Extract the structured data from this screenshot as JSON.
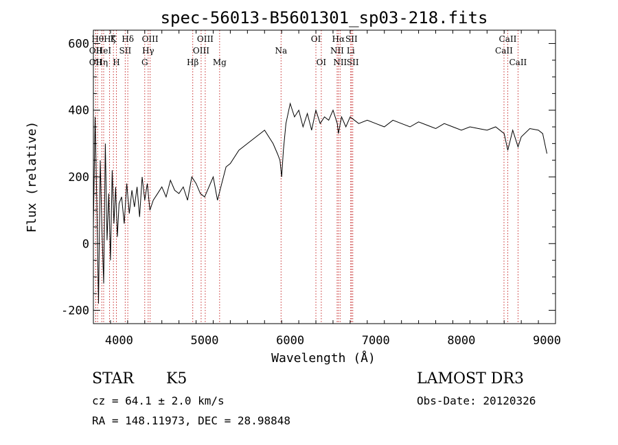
{
  "chart_data": {
    "type": "line",
    "title": "spec-56013-B5601301_sp03-218.fits",
    "xlabel": "Wavelength (Å)",
    "ylabel": "Flux (relative)",
    "xlim": [
      3700,
      9100
    ],
    "ylim": [
      -240,
      640
    ],
    "xticks": [
      4000,
      5000,
      6000,
      7000,
      8000,
      9000
    ],
    "yticks": [
      -200,
      0,
      200,
      400,
      600
    ],
    "grid": false,
    "series": [
      {
        "name": "flux",
        "x": [
          3700,
          3720,
          3740,
          3760,
          3780,
          3800,
          3820,
          3840,
          3860,
          3880,
          3900,
          3920,
          3940,
          3960,
          3980,
          4000,
          4030,
          4060,
          4090,
          4120,
          4150,
          4180,
          4210,
          4240,
          4270,
          4300,
          4330,
          4360,
          4400,
          4450,
          4500,
          4550,
          4600,
          4650,
          4700,
          4750,
          4800,
          4850,
          4900,
          4950,
          5000,
          5050,
          5100,
          5150,
          5200,
          5250,
          5300,
          5400,
          5500,
          5600,
          5700,
          5800,
          5850,
          5880,
          5900,
          5920,
          5950,
          6000,
          6050,
          6100,
          6150,
          6200,
          6250,
          6300,
          6350,
          6400,
          6450,
          6500,
          6550,
          6563,
          6600,
          6650,
          6700,
          6750,
          6800,
          6900,
          7000,
          7100,
          7200,
          7300,
          7400,
          7500,
          7600,
          7700,
          7800,
          7900,
          8000,
          8100,
          8200,
          8300,
          8400,
          8500,
          8542,
          8600,
          8662,
          8700,
          8800,
          8900,
          8950,
          9000
        ],
        "values": [
          50,
          380,
          120,
          -180,
          250,
          40,
          -120,
          300,
          10,
          150,
          -50,
          220,
          60,
          170,
          20,
          120,
          140,
          60,
          180,
          90,
          160,
          110,
          170,
          80,
          200,
          130,
          180,
          100,
          130,
          150,
          170,
          140,
          190,
          160,
          150,
          170,
          130,
          200,
          180,
          150,
          140,
          170,
          200,
          130,
          180,
          230,
          240,
          280,
          300,
          320,
          340,
          300,
          270,
          250,
          200,
          280,
          360,
          420,
          380,
          400,
          350,
          390,
          340,
          400,
          360,
          380,
          370,
          400,
          360,
          330,
          380,
          350,
          380,
          370,
          360,
          370,
          360,
          350,
          370,
          360,
          350,
          365,
          355,
          345,
          360,
          350,
          340,
          350,
          345,
          340,
          350,
          330,
          280,
          340,
          290,
          320,
          345,
          340,
          330,
          270
        ]
      }
    ],
    "line_markers": [
      {
        "wave": 3727,
        "label": "OII",
        "row": 2
      },
      {
        "wave": 3727,
        "label": "OII",
        "row": 3
      },
      {
        "wave": 3750,
        "label": "Hθ",
        "row": 1
      },
      {
        "wave": 3798,
        "label": "Hη",
        "row": 3
      },
      {
        "wave": 3820,
        "label": "HeI",
        "row": 2
      },
      {
        "wave": 3889,
        "label": "Hζ",
        "row": 1
      },
      {
        "wave": 3934,
        "label": "K",
        "row": 1
      },
      {
        "wave": 3969,
        "label": "H",
        "row": 3
      },
      {
        "wave": 4072,
        "label": "SII",
        "row": 2
      },
      {
        "wave": 4102,
        "label": "Hδ",
        "row": 1
      },
      {
        "wave": 4300,
        "label": "G",
        "row": 3
      },
      {
        "wave": 4340,
        "label": "Hγ",
        "row": 2
      },
      {
        "wave": 4363,
        "label": "OIII",
        "row": 1
      },
      {
        "wave": 4861,
        "label": "Hβ",
        "row": 3
      },
      {
        "wave": 4959,
        "label": "OIII",
        "row": 2
      },
      {
        "wave": 5007,
        "label": "OIII",
        "row": 1
      },
      {
        "wave": 5175,
        "label": "Mg",
        "row": 3
      },
      {
        "wave": 5893,
        "label": "Na",
        "row": 2
      },
      {
        "wave": 6300,
        "label": "OI",
        "row": 1
      },
      {
        "wave": 6363,
        "label": "OI",
        "row": 3
      },
      {
        "wave": 6548,
        "label": "NII",
        "row": 2
      },
      {
        "wave": 6563,
        "label": "Hα",
        "row": 1
      },
      {
        "wave": 6583,
        "label": "NII",
        "row": 3
      },
      {
        "wave": 6707,
        "label": "Li",
        "row": 2
      },
      {
        "wave": 6716,
        "label": "SII",
        "row": 1
      },
      {
        "wave": 6731,
        "label": "SII",
        "row": 3
      },
      {
        "wave": 8498,
        "label": "CaII",
        "row": 2
      },
      {
        "wave": 8542,
        "label": "CaII",
        "row": 1
      },
      {
        "wave": 8662,
        "label": "CaII",
        "row": 3
      }
    ]
  },
  "info": {
    "class": "STAR",
    "subclass": "K5",
    "survey": "LAMOST DR3",
    "cz": "cz = 64.1 ± 2.0 km/s",
    "obs_date": "Obs-Date: 20120326",
    "radec": "RA = 148.11973, DEC =  28.98848"
  }
}
